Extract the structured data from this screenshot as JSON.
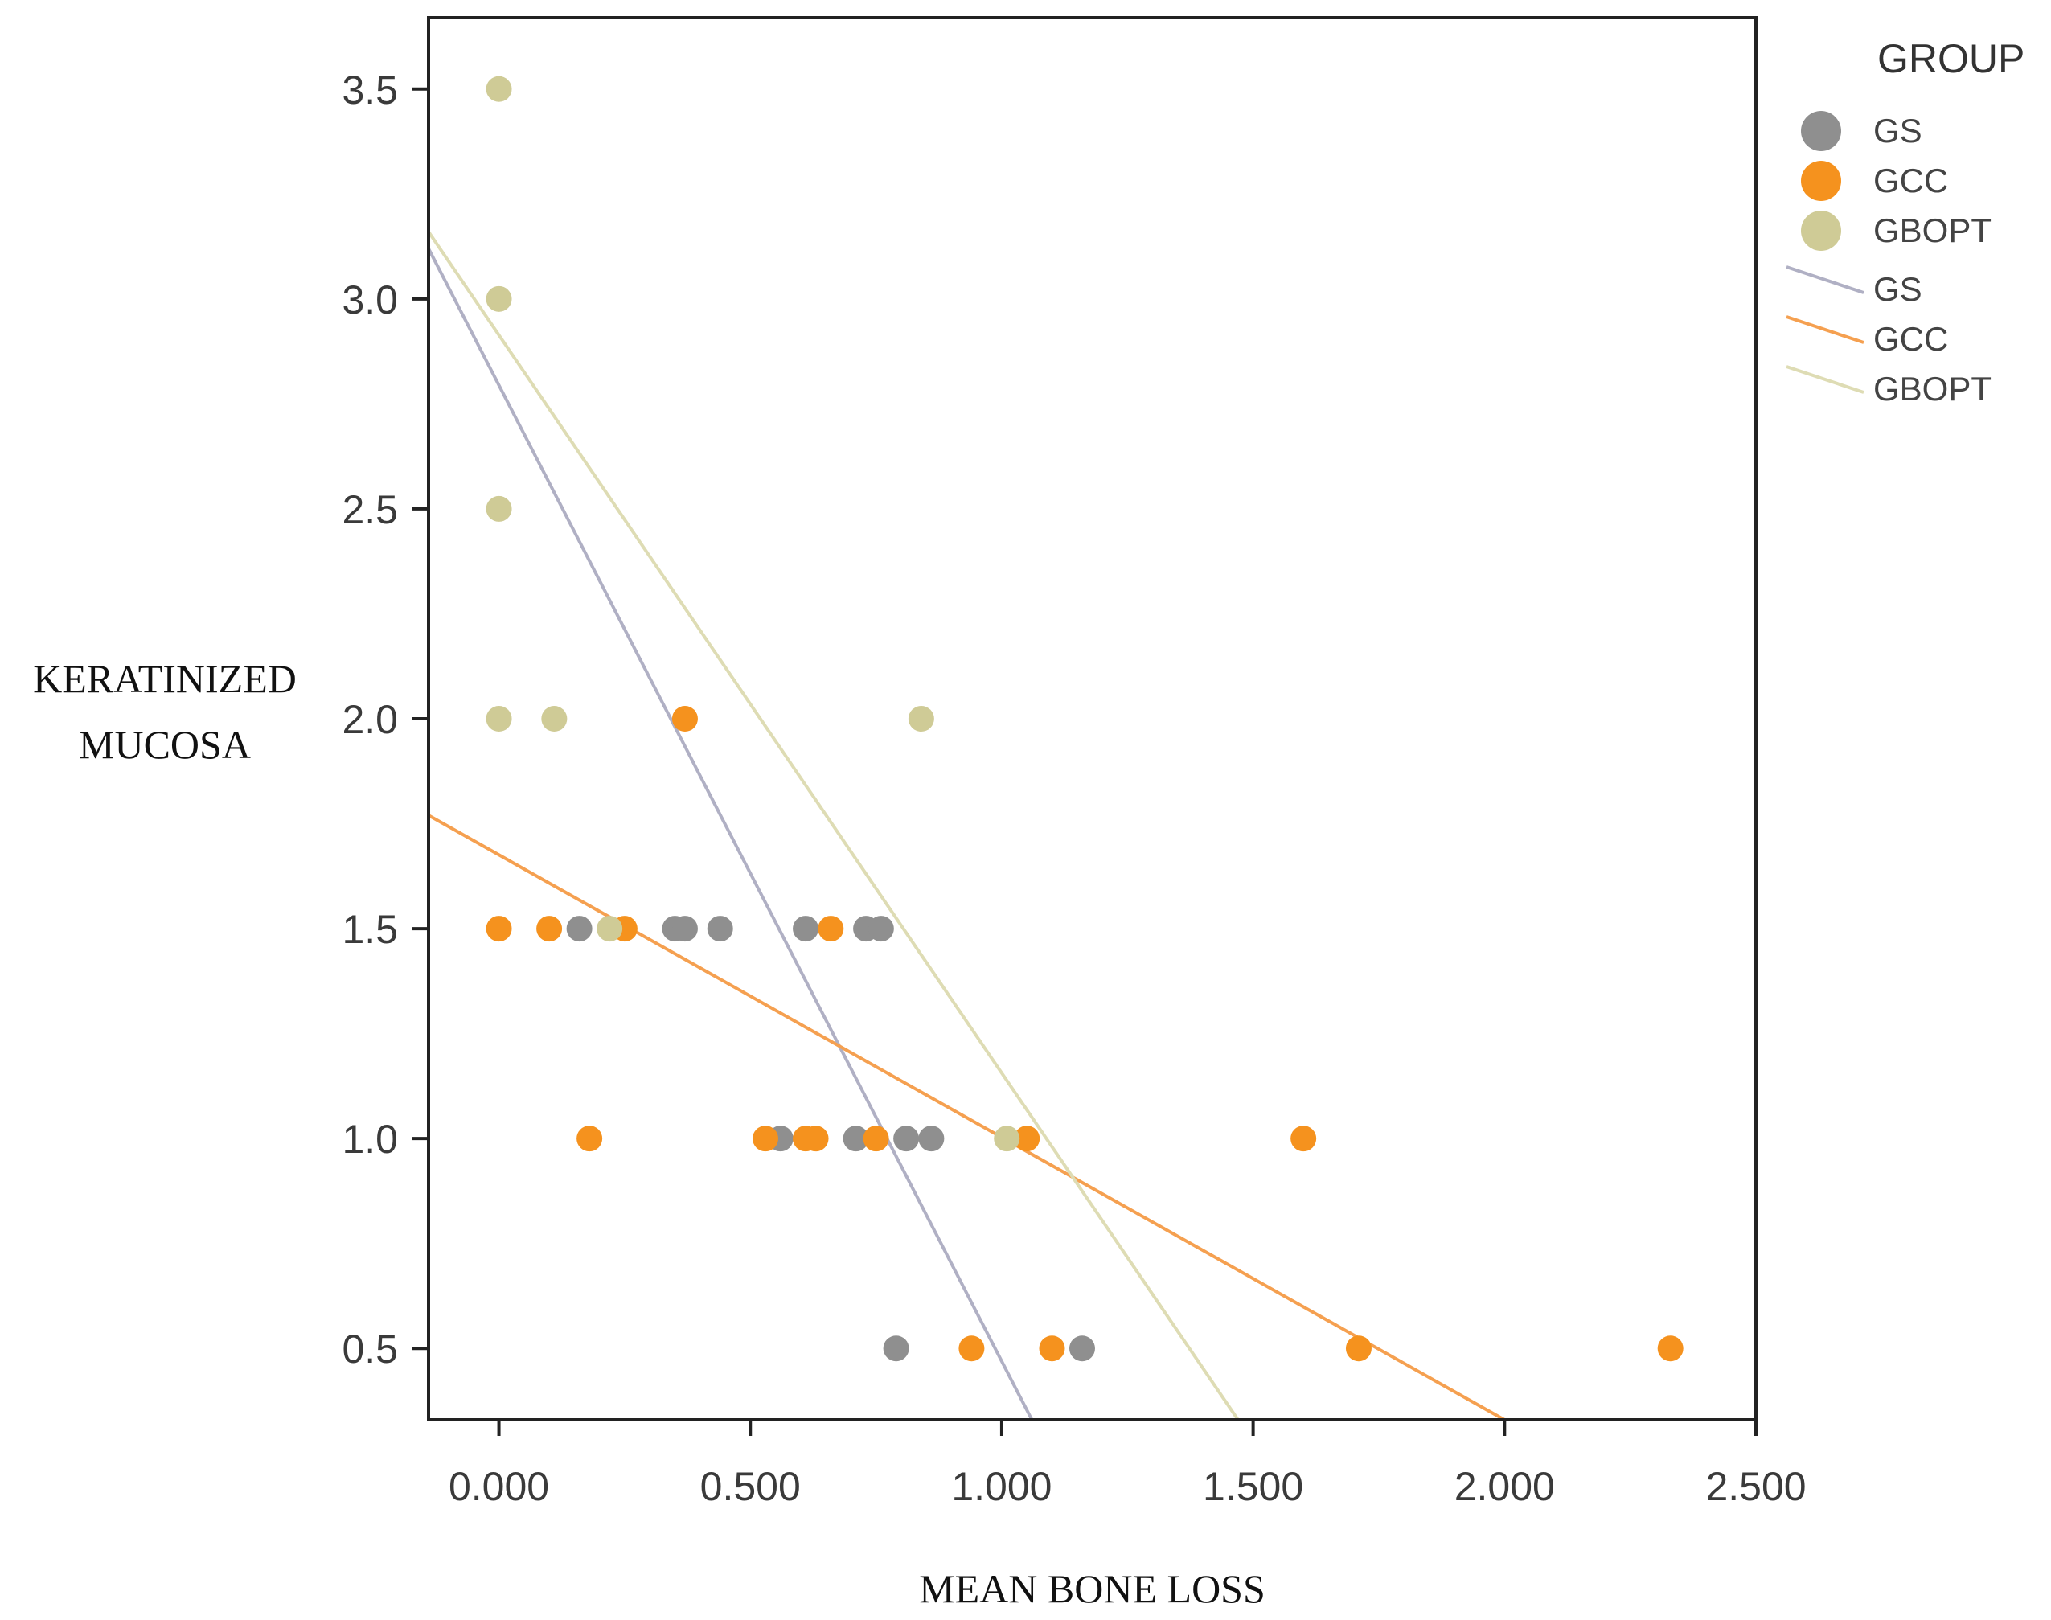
{
  "chart_data": {
    "type": "scatter",
    "xlabel": "MEAN BONE LOSS",
    "ylabel_lines": [
      "KERATINIZED",
      "MUCOSA"
    ],
    "xlim": [
      -0.14,
      2.5
    ],
    "ylim": [
      0.33,
      3.67
    ],
    "x_ticks": [
      0.0,
      0.5,
      1.0,
      1.5,
      2.0,
      2.5
    ],
    "x_tick_labels": [
      "0.000",
      "0.500",
      "1.000",
      "1.500",
      "2.000",
      "2.500"
    ],
    "y_ticks": [
      0.5,
      1.0,
      1.5,
      2.0,
      2.5,
      3.0,
      3.5
    ],
    "y_tick_labels": [
      "0.5",
      "1.0",
      "1.5",
      "2.0",
      "2.5",
      "3.0",
      "3.5"
    ],
    "grid": false,
    "legend": {
      "title": "GROUP",
      "position": "top-right",
      "marker_labels": [
        "GS",
        "GCC",
        "GBOPT"
      ],
      "line_labels": [
        "GS",
        "GCC",
        "GBOPT"
      ]
    },
    "series": [
      {
        "name": "GS",
        "color": "#8f8f8f",
        "points": [
          [
            0.16,
            1.5
          ],
          [
            0.35,
            1.5
          ],
          [
            0.37,
            1.5
          ],
          [
            0.44,
            1.5
          ],
          [
            0.61,
            1.5
          ],
          [
            0.73,
            1.5
          ],
          [
            0.76,
            1.5
          ],
          [
            0.56,
            1.0
          ],
          [
            0.71,
            1.0
          ],
          [
            0.81,
            1.0
          ],
          [
            0.86,
            1.0
          ],
          [
            0.79,
            0.5
          ],
          [
            1.16,
            0.5
          ]
        ],
        "fit_line": {
          "color": "#b0b0c4",
          "x": [
            -0.14,
            1.06
          ],
          "y": [
            3.12,
            0.33
          ]
        }
      },
      {
        "name": "GCC",
        "color": "#f5921e",
        "points": [
          [
            0.37,
            2.0
          ],
          [
            0.0,
            1.5
          ],
          [
            0.1,
            1.5
          ],
          [
            0.25,
            1.5
          ],
          [
            0.66,
            1.5
          ],
          [
            0.18,
            1.0
          ],
          [
            0.53,
            1.0
          ],
          [
            0.61,
            1.0
          ],
          [
            0.63,
            1.0
          ],
          [
            0.75,
            1.0
          ],
          [
            1.05,
            1.0
          ],
          [
            1.6,
            1.0
          ],
          [
            0.94,
            0.5
          ],
          [
            1.1,
            0.5
          ],
          [
            1.71,
            0.5
          ],
          [
            2.33,
            0.5
          ]
        ],
        "fit_line": {
          "color": "#f5a050",
          "x": [
            -0.14,
            2.0
          ],
          "y": [
            1.77,
            0.33
          ]
        }
      },
      {
        "name": "GBOPT",
        "color": "#cfcb96",
        "points": [
          [
            0.0,
            3.5
          ],
          [
            0.0,
            3.0
          ],
          [
            0.0,
            2.5
          ],
          [
            0.0,
            2.0
          ],
          [
            0.11,
            2.0
          ],
          [
            0.84,
            2.0
          ],
          [
            0.22,
            1.5
          ],
          [
            1.01,
            1.0
          ]
        ],
        "fit_line": {
          "color": "#dedcb4",
          "x": [
            -0.14,
            1.47
          ],
          "y": [
            3.16,
            0.33
          ]
        }
      }
    ]
  }
}
